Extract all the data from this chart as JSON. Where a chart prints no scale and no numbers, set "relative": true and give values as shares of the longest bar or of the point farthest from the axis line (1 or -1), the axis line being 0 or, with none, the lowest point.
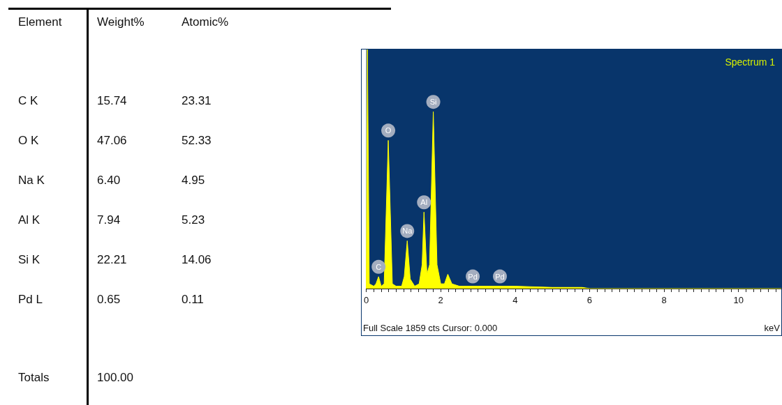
{
  "chart_data": [
    {
      "type": "other",
      "xlabel": "Element",
      "categories": [
        "C K",
        "O K",
        "Na K",
        "Al K",
        "Si K",
        "Pd L"
      ],
      "series": [
        {
          "name": "Weight%",
          "values": [
            15.74,
            47.06,
            6.4,
            7.94,
            22.21,
            0.65
          ],
          "value_labels": [
            "15.74",
            "47.06",
            "6.40",
            "7.94",
            "22.21",
            "0.65"
          ]
        },
        {
          "name": "Atomic%",
          "values": [
            23.31,
            52.33,
            4.95,
            5.23,
            14.06,
            0.11
          ],
          "value_labels": [
            "23.31",
            "52.33",
            "4.95",
            "5.23",
            "14.06",
            "0.11"
          ]
        }
      ],
      "data_labels": true,
      "annotations": [
        "Totals",
        "100.00"
      ]
    },
    {
      "type": "area",
      "title": "Spectrum 1",
      "xlabel": "keV",
      "relative": true,
      "color": "#ffff00",
      "x": [
        0,
        0.03,
        0.08,
        0.2,
        0.26,
        0.33,
        0.4,
        0.48,
        0.59,
        0.7,
        0.8,
        0.95,
        1.02,
        1.1,
        1.18,
        1.3,
        1.42,
        1.5,
        1.55,
        1.63,
        1.7,
        1.8,
        1.9,
        2.0,
        2.1,
        2.19,
        2.3,
        2.5,
        3,
        4,
        5,
        5.8,
        6,
        11.15
      ],
      "values": [
        0,
        1,
        0.02,
        0.01,
        0.02,
        0.05,
        0.01,
        0.02,
        0.62,
        0.02,
        0.01,
        0.01,
        0.05,
        0.2,
        0.04,
        0.01,
        0.02,
        0.1,
        0.32,
        0.06,
        0.1,
        0.74,
        0.1,
        0.02,
        0.02,
        0.06,
        0.02,
        0.01,
        0.01,
        0.01,
        0.005,
        0.005,
        0,
        0
      ],
      "xlim": [
        0,
        11.15
      ],
      "xticks": [
        0,
        {
          "value": 0.2,
          "label": null
        },
        {
          "value": 0.4,
          "label": null
        },
        {
          "value": 0.6,
          "label": null
        },
        {
          "value": 0.8,
          "label": null
        },
        {
          "value": 1,
          "label": null
        },
        {
          "value": 1.2,
          "label": null
        },
        {
          "value": 1.4,
          "label": null
        },
        {
          "value": 1.6,
          "label": null
        },
        {
          "value": 1.8,
          "label": null
        },
        2,
        {
          "value": 2.2,
          "label": null
        },
        {
          "value": 2.4,
          "label": null
        },
        {
          "value": 2.6,
          "label": null
        },
        {
          "value": 2.8,
          "label": null
        },
        {
          "value": 3,
          "label": null
        },
        {
          "value": 3.2,
          "label": null
        },
        {
          "value": 3.4,
          "label": null
        },
        {
          "value": 3.6,
          "label": null
        },
        {
          "value": 3.8,
          "label": null
        },
        4,
        {
          "value": 4.2,
          "label": null
        },
        {
          "value": 4.4,
          "label": null
        },
        {
          "value": 4.6,
          "label": null
        },
        {
          "value": 4.8,
          "label": null
        },
        {
          "value": 5,
          "label": null
        },
        {
          "value": 5.2,
          "label": null
        },
        {
          "value": 5.4,
          "label": null
        },
        {
          "value": 5.6,
          "label": null
        },
        {
          "value": 5.8,
          "label": null
        },
        6,
        {
          "value": 6.2,
          "label": null
        },
        {
          "value": 6.4,
          "label": null
        },
        {
          "value": 6.6,
          "label": null
        },
        {
          "value": 6.8,
          "label": null
        },
        {
          "value": 7,
          "label": null
        },
        {
          "value": 7.2,
          "label": null
        },
        {
          "value": 7.4,
          "label": null
        },
        {
          "value": 7.6,
          "label": null
        },
        {
          "value": 7.8,
          "label": null
        },
        8,
        {
          "value": 8.2,
          "label": null
        },
        {
          "value": 8.4,
          "label": null
        },
        {
          "value": 8.6,
          "label": null
        },
        {
          "value": 8.8,
          "label": null
        },
        {
          "value": 9,
          "label": null
        },
        {
          "value": 9.2,
          "label": null
        },
        {
          "value": 9.4,
          "label": null
        },
        {
          "value": 9.6,
          "label": null
        },
        {
          "value": 9.8,
          "label": null
        },
        10,
        {
          "value": 10.2,
          "label": null
        },
        {
          "value": 10.4,
          "label": null
        },
        {
          "value": 10.6,
          "label": null
        },
        {
          "value": 10.8,
          "label": null
        },
        {
          "value": 11,
          "label": null
        }
      ],
      "grid": false,
      "annotations": [
        {
          "text": "C",
          "x": 0.33,
          "y": 0.05
        },
        {
          "text": "O",
          "x": 0.59,
          "y": 0.62
        },
        {
          "text": "Na",
          "x": 1.1,
          "y": 0.2
        },
        {
          "text": "Al",
          "x": 1.55,
          "y": 0.32
        },
        {
          "text": "Si",
          "x": 1.8,
          "y": 0.74
        },
        {
          "text": "Pd",
          "x": 2.86,
          "y": 0.01
        },
        {
          "text": "Pd",
          "x": 3.59,
          "y": 0.01
        },
        "Full Scale 1859 cts Cursor: 0.000"
      ]
    }
  ]
}
